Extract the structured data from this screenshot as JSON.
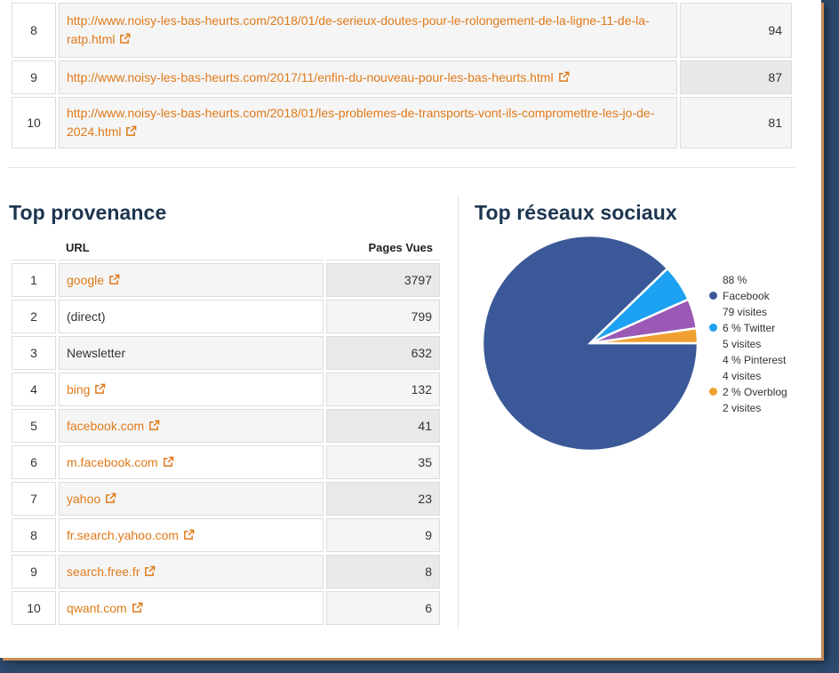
{
  "colors": {
    "link": "#e07a1a",
    "facebook": "#3b5998",
    "twitter": "#1da1f2",
    "pinterest": "#9b59b6",
    "overblog": "#f0a030"
  },
  "top_pages": [
    {
      "rank": "8",
      "url": "http://www.noisy-les-bas-heurts.com/2018/01/de-serieux-doutes-pour-le-rolongement-de-la-ligne-11-de-la-ratp.html",
      "value": "94"
    },
    {
      "rank": "9",
      "url": "http://www.noisy-les-bas-heurts.com/2017/11/enfin-du-nouveau-pour-les-bas-heurts.html",
      "value": "87"
    },
    {
      "rank": "10",
      "url": "http://www.noisy-les-bas-heurts.com/2018/01/les-problemes-de-transports-vont-ils-compromettre-les-jo-de-2024.html",
      "value": "81"
    }
  ],
  "provenance": {
    "title": "Top provenance",
    "col_url": "URL",
    "col_views": "Pages Vues",
    "rows": [
      {
        "rank": "1",
        "source": "google",
        "views": "3797",
        "link": true
      },
      {
        "rank": "2",
        "source": "(direct)",
        "views": "799",
        "link": false
      },
      {
        "rank": "3",
        "source": "Newsletter",
        "views": "632",
        "link": false
      },
      {
        "rank": "4",
        "source": "bing",
        "views": "132",
        "link": true
      },
      {
        "rank": "5",
        "source": "facebook.com",
        "views": "41",
        "link": true
      },
      {
        "rank": "6",
        "source": "m.facebook.com",
        "views": "35",
        "link": true
      },
      {
        "rank": "7",
        "source": "yahoo",
        "views": "23",
        "link": true
      },
      {
        "rank": "8",
        "source": "fr.search.yahoo.com",
        "views": "9",
        "link": true
      },
      {
        "rank": "9",
        "source": "search.free.fr",
        "views": "8",
        "link": true
      },
      {
        "rank": "10",
        "source": "qwant.com",
        "views": "6",
        "link": true
      }
    ]
  },
  "social": {
    "title": "Top réseaux sociaux",
    "legend": [
      {
        "line1": "88 %",
        "line2": "Facebook",
        "line3": "79 visites"
      },
      {
        "line1": "6 % Twitter",
        "line2": "5 visites"
      },
      {
        "line1": "4 % Pinterest",
        "line2": "4 visites"
      },
      {
        "line1": "2 % Overblog",
        "line2": "2 visites"
      }
    ]
  },
  "chart_data": {
    "type": "pie",
    "categories": [
      "Facebook",
      "Twitter",
      "Pinterest",
      "Overblog"
    ],
    "values": [
      79,
      5,
      4,
      2
    ],
    "percent": [
      88,
      6,
      4,
      2
    ],
    "title": "Top réseaux sociaux",
    "colors": [
      "#3b5998",
      "#1da1f2",
      "#9b59b6",
      "#f0a030"
    ]
  }
}
